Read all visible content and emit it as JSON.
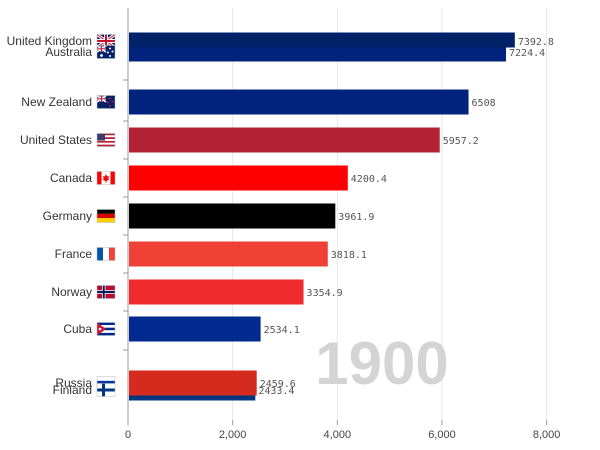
{
  "chart_data": {
    "type": "bar",
    "orientation": "horizontal",
    "title": "",
    "xlabel": "",
    "ylabel": "",
    "year": "1900",
    "xlim": [
      0,
      8600
    ],
    "xticks": [
      0,
      2000,
      4000,
      6000,
      8000
    ],
    "xtick_labels": [
      "0",
      "2,000",
      "4,000",
      "6,000",
      "8,000"
    ],
    "grid": "vertical",
    "legend": "none",
    "bars": [
      {
        "label": "United Kingdom",
        "value": 7392.8,
        "value_label": "7392.8",
        "color": "#012169",
        "flag": "uk"
      },
      {
        "label": "Australia",
        "value": 7224.4,
        "value_label": "7224.4",
        "color": "#00247d",
        "flag": "au"
      },
      {
        "label": "New Zealand",
        "value": 6508,
        "value_label": "6508",
        "color": "#00247d",
        "flag": "nz"
      },
      {
        "label": "United States",
        "value": 5957.2,
        "value_label": "5957.2",
        "color": "#b22234",
        "flag": "us"
      },
      {
        "label": "Canada",
        "value": 4200.4,
        "value_label": "4200.4",
        "color": "#ff0000",
        "flag": "ca"
      },
      {
        "label": "Germany",
        "value": 3961.9,
        "value_label": "3961.9",
        "color": "#000000",
        "flag": "de"
      },
      {
        "label": "France",
        "value": 3818.1,
        "value_label": "3818.1",
        "color": "#ef4135",
        "flag": "fr"
      },
      {
        "label": "Norway",
        "value": 3354.9,
        "value_label": "3354.9",
        "color": "#ef2b2d",
        "flag": "no"
      },
      {
        "label": "Cuba",
        "value": 2534.1,
        "value_label": "2534.1",
        "color": "#002a8f",
        "flag": "cu"
      },
      {
        "label": "Russia",
        "value": 2459.6,
        "value_label": "2459.6",
        "color": "#d52b1e",
        "flag": "ru"
      },
      {
        "label": "Finland",
        "value": 2433.4,
        "value_label": "2433.4",
        "color": "#003580",
        "flag": "fi"
      }
    ]
  }
}
